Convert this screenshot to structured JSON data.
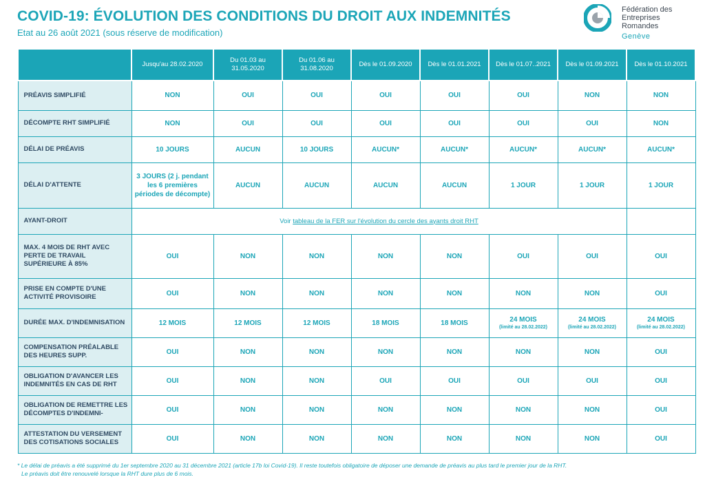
{
  "header": {
    "title": "COVID-19: ÉVOLUTION DES CONDITIONS DU DROIT AUX INDEMNITÉS",
    "subtitle": "Etat au 26 août 2021 (sous réserve de modification)"
  },
  "logo": {
    "line1": "Fédération des",
    "line2": "Entreprises",
    "line3": "Romandes",
    "city": "Genève"
  },
  "columns": [
    "Jusqu'au 28.02.2020",
    "Du 01.03 au 31.05.2020",
    "Du 01.06 au 31.08.2020",
    "Dès le 01.09.2020",
    "Dès le 01.01.2021",
    "Dès le 01.07..2021",
    "Dès le 01.09.2021",
    "Dès le 01.10.2021"
  ],
  "rows": [
    {
      "label": "PRÉAVIS SIMPLIFIÉ",
      "values": [
        "NON",
        "OUI",
        "OUI",
        "OUI",
        "OUI",
        "OUI",
        "NON",
        "NON"
      ]
    },
    {
      "label": "DÉCOMPTE RHT SIMPLIFIÉ",
      "values": [
        "NON",
        "OUI",
        "OUI",
        "OUI",
        "OUI",
        "OUI",
        "OUI",
        "NON"
      ]
    },
    {
      "label": "DÉLAI DE PRÉAVIS",
      "values": [
        "10 JOURS",
        "AUCUN",
        "10 JOURS",
        "AUCUN*",
        "AUCUN*",
        "AUCUN*",
        "AUCUN*",
        "AUCUN*"
      ]
    },
    {
      "label": "DÉLAI D'ATTENTE",
      "values": [
        "3 JOURS (2 j. pendant les 6 premières périodes de décompte)",
        "AUCUN",
        "AUCUN",
        "AUCUN",
        "AUCUN",
        "1 JOUR",
        "1 JOUR",
        "1 JOUR"
      ]
    },
    {
      "label": "MAX. 4 MOIS DE RHT AVEC PERTE DE TRAVAIL SUPÉRIEURE À 85%",
      "values": [
        "OUI",
        "NON",
        "NON",
        "NON",
        "NON",
        "OUI",
        "OUI",
        "OUI"
      ]
    },
    {
      "label": "PRISE EN COMPTE D'UNE ACTIVITÉ PROVISOIRE",
      "values": [
        "OUI",
        "NON",
        "NON",
        "NON",
        "NON",
        "NON",
        "NON",
        "OUI"
      ]
    },
    {
      "label": "DURÉE MAX. D'INDEMNISATION",
      "values": [
        "12 MOIS",
        "12 MOIS",
        "12 MOIS",
        "18 MOIS",
        "18 MOIS",
        "24 MOIS",
        "24 MOIS",
        "24 MOIS"
      ],
      "notes": [
        "",
        "",
        "",
        "",
        "",
        "(limité au 28.02.2022)",
        "(limité au 28.02.2022)",
        "(limité au 28.02.2022)"
      ]
    },
    {
      "label": "COMPENSATION PRÉALABLE DES HEURES SUPP.",
      "values": [
        "OUI",
        "NON",
        "NON",
        "NON",
        "NON",
        "NON",
        "NON",
        "OUI"
      ]
    },
    {
      "label": "OBLIGATION D'AVANCER LES INDEMNITÉS EN CAS DE RHT",
      "values": [
        "OUI",
        "NON",
        "NON",
        "OUI",
        "OUI",
        "OUI",
        "OUI",
        "OUI"
      ]
    },
    {
      "label": "OBLIGATION DE REMETTRE LES DÉCOMPTES D'INDEMNI-",
      "values": [
        "OUI",
        "NON",
        "NON",
        "NON",
        "NON",
        "NON",
        "NON",
        "OUI"
      ]
    },
    {
      "label": "ATTESTATION DU VERSEMENT DES COTISATIONS SOCIALES",
      "values": [
        "OUI",
        "NON",
        "NON",
        "NON",
        "NON",
        "NON",
        "NON",
        "OUI"
      ]
    }
  ],
  "ayant_droit": {
    "label": "AYANT-DROIT",
    "text_before": "Voir ",
    "link": "tableau de la FER sur l'évolution du cercle des ayants droit RHT"
  },
  "footnote": {
    "line1": "* Le délai de préavis a été supprimé du 1er septembre 2020 au 31 décembre 2021 (article 17b loi Covid-19). Il reste toutefois obligatoire de déposer une demande de préavis au plus tard le premier jour de la RHT.",
    "line2": "Le préavis doit être renouvelé lorsque la RHT dure plus de 6 mois."
  },
  "colors": {
    "accent": "#1ba5b7",
    "label_bg": "#dceff2"
  }
}
